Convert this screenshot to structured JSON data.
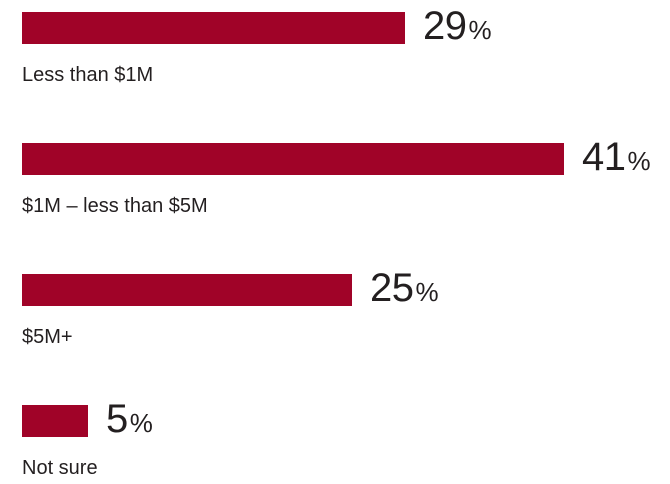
{
  "chart_data": {
    "type": "bar",
    "orientation": "horizontal",
    "categories": [
      "Less than $1M",
      "$1M – less than $5M",
      "$5M+",
      "Not sure"
    ],
    "values": [
      29,
      41,
      25,
      5
    ],
    "value_suffix": "%",
    "bar_color": "#a00328",
    "xlim": [
      0,
      41
    ],
    "grid": false,
    "legend": "none"
  }
}
